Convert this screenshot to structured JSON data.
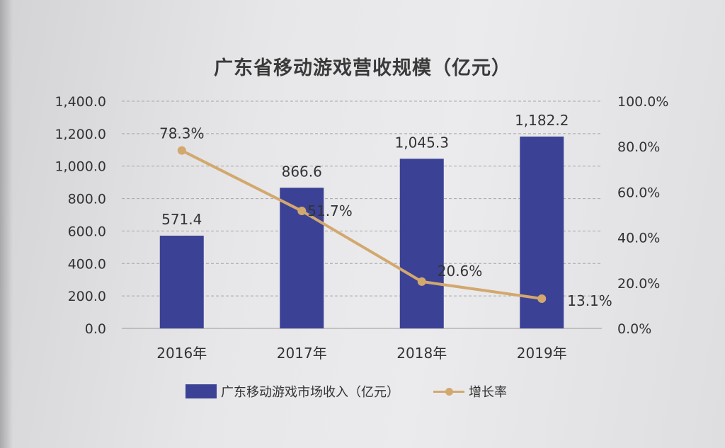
{
  "chart_data": {
    "type": "bar",
    "title": "广东省移动游戏营收规模（亿元）",
    "categories": [
      "2016年",
      "2017年",
      "2018年",
      "2019年"
    ],
    "series": [
      {
        "name": "广东移动游戏市场收入（亿元）",
        "type": "bar",
        "axis": "left",
        "values": [
          571.4,
          866.6,
          1045.3,
          1182.2
        ],
        "labels": [
          "571.4",
          "866.6",
          "1,045.3",
          "1,182.2"
        ],
        "color": "#3b4295"
      },
      {
        "name": "增长率",
        "type": "line",
        "axis": "right",
        "values": [
          78.3,
          51.7,
          20.6,
          13.1
        ],
        "labels": [
          "78.3%",
          "51.7%",
          "20.6%",
          "13.1%"
        ],
        "color": "#d3a86e"
      }
    ],
    "y_left": {
      "ylim": [
        0,
        1400
      ],
      "ticks": [
        "0.0",
        "200.0",
        "400.0",
        "600.0",
        "800.0",
        "1,000.0",
        "1,200.0",
        "1,400.0"
      ]
    },
    "y_right": {
      "ylim": [
        0,
        100
      ],
      "ticks": [
        "0.0%",
        "20.0%",
        "40.0%",
        "60.0%",
        "80.0%",
        "100.0%"
      ]
    },
    "grid": true,
    "legend": "bottom"
  }
}
